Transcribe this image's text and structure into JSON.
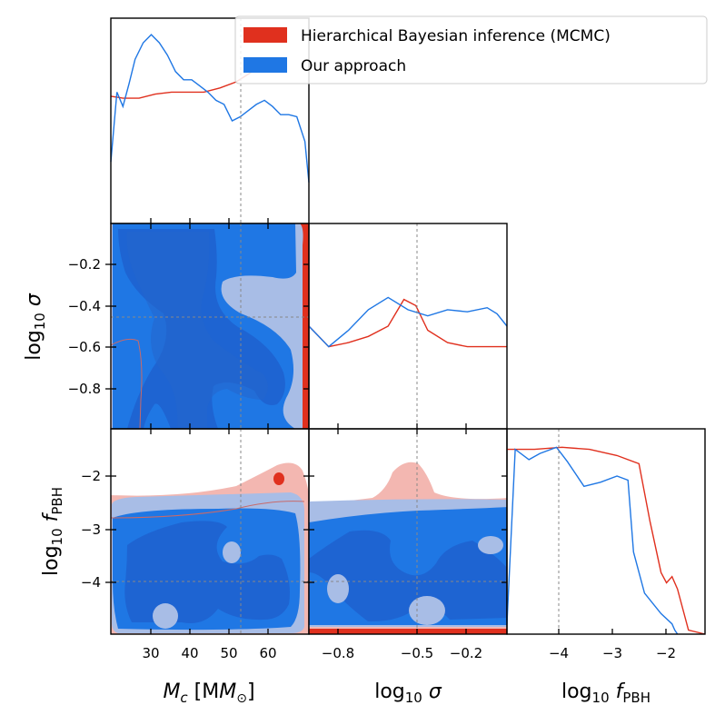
{
  "colors": {
    "mcmc": "#e0301e",
    "ours": "#1f77e4",
    "ours_dark": "#1e64d2",
    "ours_light": "#a8bde6",
    "mcmc_light": "#f0a59e",
    "truth": "#888888"
  },
  "legend": {
    "mcmc_label": "Hierarchical Bayesian inference (MCMC)",
    "ours_label": "Our approach"
  },
  "axis_labels": {
    "mc_main": "M",
    "mc_sub": "c",
    "mc_unit_open": " [M",
    "mc_unit_sub": "⊙",
    "mc_unit_close": "]",
    "log": "log",
    "ten": "10",
    "sigma": " σ",
    "f": " f",
    "pbh_sub": "PBH"
  },
  "ticks": {
    "mc_x": [
      "30",
      "40",
      "50",
      "60"
    ],
    "sigma_y": [
      "−0.2",
      "−0.4",
      "−0.6",
      "−0.8"
    ],
    "sigma_x": [
      "−0.8",
      "−0.5",
      "−0.2"
    ],
    "fpbh_y": [
      "−2",
      "−3",
      "−4"
    ],
    "fpbh_x": [
      "−4",
      "−3",
      "−2"
    ]
  },
  "chart_data": [
    {
      "type": "line",
      "panel": "marginal Mc",
      "x_range": [
        21,
        70
      ],
      "truth": 53,
      "series": [
        {
          "name": "Hierarchical Bayesian inference (MCMC)",
          "x": [
            21,
            24,
            28,
            32,
            36,
            40,
            44,
            48,
            52,
            56,
            59
          ],
          "y": [
            0.62,
            0.61,
            0.61,
            0.63,
            0.64,
            0.64,
            0.64,
            0.66,
            0.69,
            0.74,
            0.78
          ]
        },
        {
          "name": "Our approach",
          "x": [
            21,
            22.5,
            24,
            25.5,
            27,
            29,
            31,
            33,
            35,
            37,
            39,
            41,
            43,
            45,
            47,
            49,
            51,
            53,
            55,
            57,
            59,
            61,
            63,
            65,
            67,
            69,
            70
          ],
          "y": [
            0.3,
            0.64,
            0.57,
            0.68,
            0.8,
            0.88,
            0.92,
            0.88,
            0.82,
            0.74,
            0.7,
            0.7,
            0.67,
            0.64,
            0.6,
            0.58,
            0.5,
            0.52,
            0.55,
            0.58,
            0.6,
            0.57,
            0.53,
            0.53,
            0.52,
            0.4,
            0.2
          ]
        }
      ]
    },
    {
      "type": "line",
      "panel": "marginal log10 sigma",
      "x_range": [
        -1.0,
        0.0
      ],
      "truth": -0.45,
      "series": [
        {
          "name": "Hierarchical Bayesian inference (MCMC)",
          "x": [
            -1.0,
            -0.9,
            -0.8,
            -0.7,
            -0.6,
            -0.52,
            -0.46,
            -0.4,
            -0.3,
            -0.2,
            -0.1,
            0.0
          ],
          "y": [
            0.5,
            0.4,
            0.42,
            0.45,
            0.5,
            0.63,
            0.6,
            0.48,
            0.42,
            0.4,
            0.4,
            0.4
          ]
        },
        {
          "name": "Our approach",
          "x": [
            -1.0,
            -0.9,
            -0.8,
            -0.7,
            -0.6,
            -0.5,
            -0.4,
            -0.3,
            -0.2,
            -0.1,
            -0.05,
            0.0
          ],
          "y": [
            0.5,
            0.4,
            0.48,
            0.58,
            0.64,
            0.58,
            0.55,
            0.58,
            0.57,
            0.59,
            0.56,
            0.5
          ]
        }
      ]
    },
    {
      "type": "line",
      "panel": "marginal log10 fPBH",
      "x_range": [
        -5.0,
        -1.4
      ],
      "truth": -4.0,
      "series": [
        {
          "name": "Hierarchical Bayesian inference (MCMC)",
          "x": [
            -5.0,
            -4.5,
            -4.0,
            -3.5,
            -3.0,
            -2.6,
            -2.4,
            -2.2,
            -2.1,
            -2.0,
            -1.9,
            -1.7,
            -1.4
          ],
          "y": [
            0.9,
            0.9,
            0.91,
            0.9,
            0.87,
            0.83,
            0.55,
            0.3,
            0.25,
            0.28,
            0.22,
            0.02,
            0.0
          ]
        },
        {
          "name": "Our approach",
          "x": [
            -5.0,
            -4.85,
            -4.6,
            -4.4,
            -4.1,
            -3.9,
            -3.6,
            -3.3,
            -3.0,
            -2.8,
            -2.7,
            -2.5,
            -2.2,
            -2.0,
            -1.95,
            -1.9
          ],
          "y": [
            0.05,
            0.9,
            0.85,
            0.88,
            0.91,
            0.84,
            0.72,
            0.74,
            0.77,
            0.75,
            0.4,
            0.2,
            0.1,
            0.05,
            0.02,
            0.0
          ]
        }
      ]
    },
    {
      "type": "contour",
      "panel": "log10 sigma vs Mc",
      "x_range": [
        21,
        70
      ],
      "y_range": [
        -1.0,
        0.05
      ],
      "truth": {
        "x": 53,
        "y": -0.45
      }
    },
    {
      "type": "contour",
      "panel": "log10 fPBH vs Mc",
      "x_range": [
        21,
        70
      ],
      "y_range": [
        -5.0,
        -1.4
      ],
      "truth": {
        "x": 53,
        "y": -4.0
      }
    },
    {
      "type": "contour",
      "panel": "log10 fPBH vs log10 sigma",
      "x_range": [
        -1.0,
        0.0
      ],
      "y_range": [
        -5.0,
        -1.4
      ],
      "truth": {
        "x": -0.45,
        "y": -4.0
      }
    }
  ]
}
